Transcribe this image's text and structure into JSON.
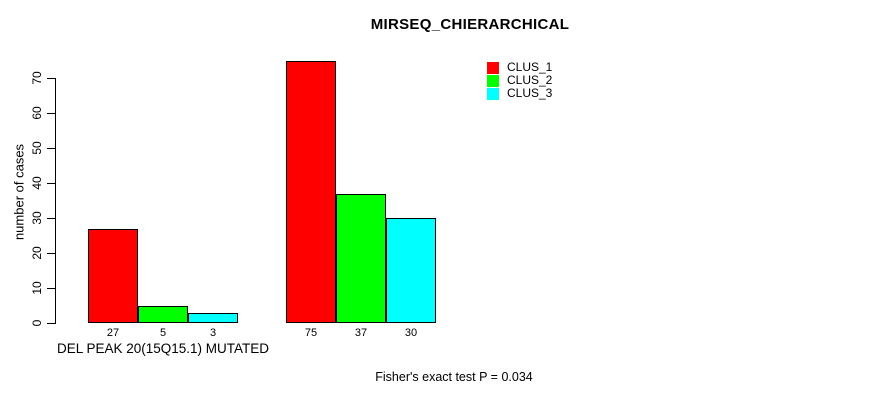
{
  "chart_data": {
    "type": "bar",
    "title": "MIRSEQ_CHIERARCHICAL",
    "ylabel": "number of cases",
    "xlabel": "DEL PEAK 20(15Q15.1) MUTATED",
    "annotation": "Fisher's exact test P = 0.034",
    "ylim": [
      0,
      70
    ],
    "yticks": [
      0,
      10,
      20,
      30,
      40,
      50,
      60,
      70
    ],
    "grid": false,
    "legend_position": "top-right",
    "bar_value_labels": true,
    "series": [
      {
        "name": "CLUS_1",
        "color": "#ff0000",
        "values": [
          27,
          75
        ]
      },
      {
        "name": "CLUS_2",
        "color": "#00ff00",
        "values": [
          5,
          37
        ]
      },
      {
        "name": "CLUS_3",
        "color": "#00ffff",
        "values": [
          3,
          30
        ]
      }
    ]
  }
}
